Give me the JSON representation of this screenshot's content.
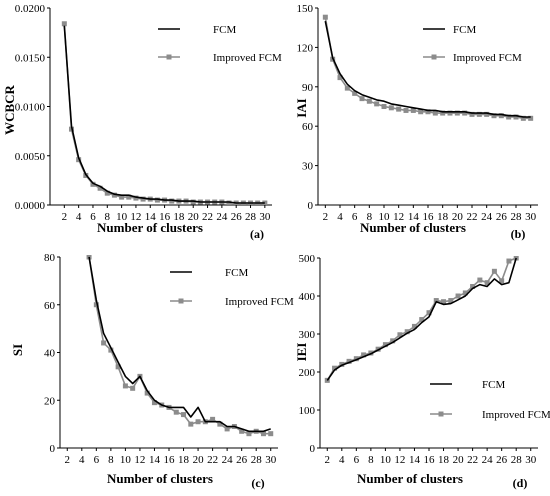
{
  "colors": {
    "fcm": "#000000",
    "improved": "#8c8c8c",
    "axis": "#000000"
  },
  "chart_data": [
    {
      "type": "line",
      "panel": "(a)",
      "xlabel": "Number of clusters",
      "ylabel": "WCBCR",
      "xlim": [
        0,
        31
      ],
      "ylim": [
        0,
        0.02
      ],
      "xticks": [
        2,
        4,
        6,
        8,
        10,
        12,
        14,
        16,
        18,
        20,
        22,
        24,
        26,
        28,
        30
      ],
      "yticks": [
        0,
        0.005,
        0.01,
        0.015,
        0.02
      ],
      "ytick_labels": [
        "0.0000",
        "0.0050",
        "0.0100",
        "0.0150",
        "0.0200"
      ],
      "legend": "top-right",
      "series": [
        {
          "name": "FCM",
          "marker": "none",
          "x": [
            2,
            3,
            4,
            5,
            6,
            7,
            8,
            9,
            10,
            11,
            12,
            13,
            14,
            15,
            16,
            17,
            18,
            19,
            20,
            21,
            22,
            23,
            24,
            25,
            26,
            27,
            28,
            29,
            30
          ],
          "y": [
            0.0182,
            0.008,
            0.0048,
            0.0031,
            0.0022,
            0.0019,
            0.0014,
            0.0011,
            0.001,
            0.001,
            0.0008,
            0.0007,
            0.0006,
            0.0006,
            0.0005,
            0.0005,
            0.0004,
            0.0004,
            0.0004,
            0.0003,
            0.0003,
            0.0003,
            0.0003,
            0.0003,
            0.0002,
            0.0002,
            0.0002,
            0.0002,
            0.0002
          ]
        },
        {
          "name": "Improved FCM",
          "marker": "square",
          "x": [
            2,
            3,
            4,
            5,
            6,
            7,
            8,
            9,
            10,
            11,
            12,
            13,
            14,
            15,
            16,
            17,
            18,
            19,
            20,
            21,
            22,
            23,
            24,
            25,
            26,
            27,
            28,
            29,
            30
          ],
          "y": [
            0.0184,
            0.0077,
            0.0046,
            0.003,
            0.0021,
            0.0017,
            0.0012,
            0.001,
            0.0008,
            0.0008,
            0.0007,
            0.0006,
            0.0006,
            0.0005,
            0.0005,
            0.0004,
            0.0004,
            0.0004,
            0.0003,
            0.0003,
            0.0003,
            0.0003,
            0.0003,
            0.0002,
            0.0002,
            0.0002,
            0.0002,
            0.0002,
            0.0002
          ]
        }
      ]
    },
    {
      "type": "line",
      "panel": "(b)",
      "xlabel": "Number of clusters",
      "ylabel": "IAI",
      "xlim": [
        1,
        31
      ],
      "ylim": [
        0,
        150
      ],
      "xticks": [
        2,
        4,
        6,
        8,
        10,
        12,
        14,
        16,
        18,
        20,
        22,
        24,
        26,
        28,
        30
      ],
      "yticks": [
        0,
        30,
        60,
        90,
        120,
        150
      ],
      "ytick_labels": [
        "0",
        "30",
        "60",
        "90",
        "120",
        "150"
      ],
      "legend": "top-right",
      "series": [
        {
          "name": "FCM",
          "marker": "none",
          "x": [
            2,
            3,
            4,
            5,
            6,
            7,
            8,
            9,
            10,
            11,
            12,
            13,
            14,
            15,
            16,
            17,
            18,
            19,
            20,
            21,
            22,
            23,
            24,
            25,
            26,
            27,
            28,
            29,
            30
          ],
          "y": [
            140,
            112,
            100,
            92,
            87,
            84,
            82,
            80,
            79,
            77,
            76,
            75,
            74,
            73,
            72,
            72,
            71,
            71,
            71,
            71,
            70,
            70,
            70,
            69,
            69,
            68,
            68,
            67,
            67
          ]
        },
        {
          "name": "Improved FCM",
          "marker": "square",
          "x": [
            2,
            3,
            4,
            5,
            6,
            7,
            8,
            9,
            10,
            11,
            12,
            13,
            14,
            15,
            16,
            17,
            18,
            19,
            20,
            21,
            22,
            23,
            24,
            25,
            26,
            27,
            28,
            29,
            30
          ],
          "y": [
            143,
            111,
            97,
            89,
            85,
            81,
            79,
            77,
            75,
            74,
            73,
            72,
            72,
            71,
            71,
            70,
            70,
            70,
            70,
            70,
            69,
            69,
            69,
            68,
            68,
            67,
            67,
            66,
            66
          ]
        }
      ]
    },
    {
      "type": "line",
      "panel": "(c)",
      "xlabel": "Number of clusters",
      "ylabel": "SI",
      "xlim": [
        1,
        31
      ],
      "ylim": [
        0,
        80
      ],
      "xticks": [
        2,
        4,
        6,
        8,
        10,
        12,
        14,
        16,
        18,
        20,
        22,
        24,
        26,
        28,
        30
      ],
      "yticks": [
        0,
        20,
        40,
        60,
        80
      ],
      "ytick_labels": [
        "0",
        "20",
        "40",
        "60",
        "80"
      ],
      "legend": "top-right",
      "series": [
        {
          "name": "FCM",
          "marker": "none",
          "x": [
            5,
            6,
            7,
            8,
            9,
            10,
            11,
            12,
            13,
            14,
            15,
            16,
            17,
            18,
            19,
            20,
            21,
            22,
            23,
            24,
            25,
            26,
            27,
            28,
            29,
            30
          ],
          "y": [
            80,
            62,
            48,
            42,
            36,
            30,
            27,
            30,
            24,
            20,
            18,
            17,
            17,
            17,
            13,
            17,
            11,
            11,
            11,
            9,
            9,
            8,
            7,
            7,
            7,
            8
          ]
        },
        {
          "name": "Improved FCM",
          "marker": "square",
          "x": [
            5,
            6,
            7,
            8,
            9,
            10,
            11,
            12,
            13,
            14,
            15,
            16,
            17,
            18,
            19,
            20,
            21,
            22,
            23,
            24,
            25,
            26,
            27,
            28,
            29,
            30
          ],
          "y": [
            80,
            60,
            44,
            41,
            34,
            26,
            25,
            30,
            23,
            19,
            18,
            17,
            15,
            14,
            10,
            11,
            11,
            12,
            10,
            8,
            9,
            7,
            6,
            7,
            6,
            6
          ]
        }
      ]
    },
    {
      "type": "line",
      "panel": "(d)",
      "xlabel": "Number of clusters",
      "ylabel": "IEI",
      "xlim": [
        1,
        31
      ],
      "ylim": [
        0,
        500
      ],
      "xticks": [
        2,
        4,
        6,
        8,
        10,
        12,
        14,
        16,
        18,
        20,
        22,
        24,
        26,
        28,
        30
      ],
      "yticks": [
        0,
        100,
        200,
        300,
        400,
        500
      ],
      "ytick_labels": [
        "0",
        "100",
        "200",
        "300",
        "400",
        "500"
      ],
      "legend": "bottom-right",
      "series": [
        {
          "name": "FCM",
          "marker": "none",
          "x": [
            2,
            3,
            4,
            5,
            6,
            7,
            8,
            9,
            10,
            11,
            12,
            13,
            14,
            15,
            16,
            17,
            18,
            19,
            20,
            21,
            22,
            23,
            24,
            25,
            26,
            27,
            28
          ],
          "y": [
            178,
            205,
            218,
            225,
            232,
            240,
            248,
            258,
            268,
            278,
            290,
            302,
            312,
            330,
            345,
            385,
            378,
            380,
            390,
            400,
            420,
            430,
            425,
            445,
            430,
            435,
            500
          ]
        },
        {
          "name": "Improved FCM",
          "marker": "square",
          "x": [
            2,
            3,
            4,
            5,
            6,
            7,
            8,
            9,
            10,
            11,
            12,
            13,
            14,
            15,
            16,
            17,
            18,
            19,
            20,
            21,
            22,
            23,
            24,
            25,
            26,
            27,
            28
          ],
          "y": [
            178,
            210,
            220,
            228,
            235,
            245,
            250,
            260,
            272,
            282,
            298,
            306,
            320,
            338,
            356,
            388,
            385,
            388,
            400,
            408,
            425,
            442,
            435,
            465,
            440,
            492,
            500
          ]
        }
      ]
    }
  ]
}
